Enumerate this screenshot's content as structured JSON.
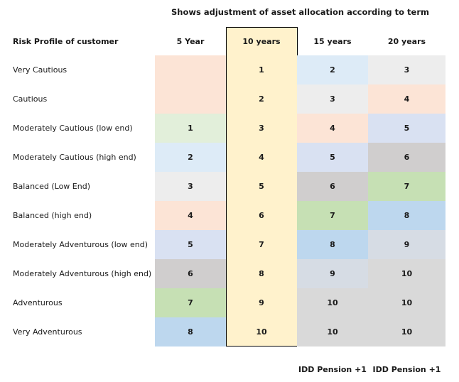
{
  "title": "Shows adjustment of asset allocation according to term",
  "header": {
    "profile_label": "Risk Profile of customer",
    "terms": [
      "5 Year",
      "10 years",
      "15 years",
      "20 years"
    ]
  },
  "colors": {
    "peach": "#fce4d6",
    "green_light": "#e2efda",
    "blue_light": "#ddebf7",
    "grey_light": "#ededed",
    "lavender": "#d9e1f2",
    "grey_mid": "#d0cece",
    "green_mid": "#c6e0b4",
    "blue_mid": "#bdd7ee",
    "slate_light": "#d6dce4",
    "grey_plain": "#d9d9d9",
    "highlight": "#fff2cc"
  },
  "rows": [
    {
      "profile": "Very Cautious",
      "y5": "",
      "y10": "1",
      "y15": "2",
      "y20": "3",
      "c5": "peach",
      "c15": "blue_light",
      "c20": "grey_light"
    },
    {
      "profile": "Cautious",
      "y5": "",
      "y10": "2",
      "y15": "3",
      "y20": "4",
      "c5": "peach",
      "c15": "grey_light",
      "c20": "peach"
    },
    {
      "profile": "Moderately Cautious (low end)",
      "y5": "1",
      "y10": "3",
      "y15": "4",
      "y20": "5",
      "c5": "green_light",
      "c15": "peach",
      "c20": "lavender"
    },
    {
      "profile": "Moderately Cautious (high end)",
      "y5": "2",
      "y10": "4",
      "y15": "5",
      "y20": "6",
      "c5": "blue_light",
      "c15": "lavender",
      "c20": "grey_mid"
    },
    {
      "profile": "Balanced (Low End)",
      "y5": "3",
      "y10": "5",
      "y15": "6",
      "y20": "7",
      "c5": "grey_light",
      "c15": "grey_mid",
      "c20": "green_mid"
    },
    {
      "profile": "Balanced (high end)",
      "y5": "4",
      "y10": "6",
      "y15": "7",
      "y20": "8",
      "c5": "peach",
      "c15": "green_mid",
      "c20": "blue_mid"
    },
    {
      "profile": "Moderately Adventurous (low end)",
      "y5": "5",
      "y10": "7",
      "y15": "8",
      "y20": "9",
      "c5": "lavender",
      "c15": "blue_mid",
      "c20": "slate_light"
    },
    {
      "profile": "Moderately Adventurous (high end)",
      "y5": "6",
      "y10": "8",
      "y15": "9",
      "y20": "10",
      "c5": "grey_mid",
      "c15": "slate_light",
      "c20": "grey_plain"
    },
    {
      "profile": "Adventurous",
      "y5": "7",
      "y10": "9",
      "y15": "10",
      "y20": "10",
      "c5": "green_mid",
      "c15": "grey_plain",
      "c20": "grey_plain"
    },
    {
      "profile": "Very Adventurous",
      "y5": "8",
      "y10": "10",
      "y15": "10",
      "y20": "10",
      "c5": "blue_mid",
      "c15": "grey_plain",
      "c20": "grey_plain"
    }
  ],
  "footer": {
    "col15": "IDD Pension +1",
    "col20": "IDD Pension +1"
  }
}
